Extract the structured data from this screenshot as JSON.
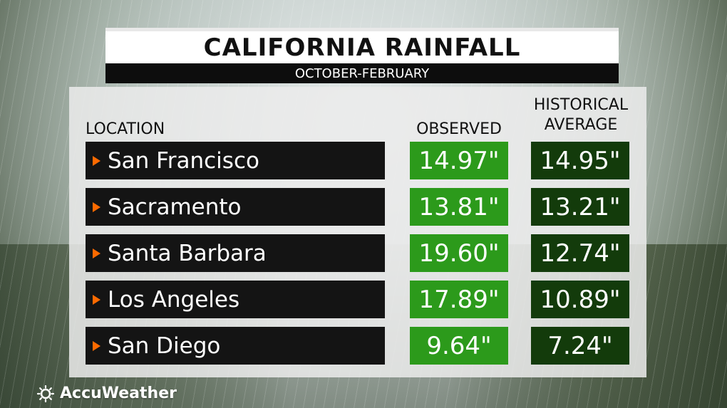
{
  "title": "CALIFORNIA RAINFALL",
  "subtitle": "OCTOBER-FEBRUARY",
  "brand": "AccuWeather",
  "columns": {
    "location": "LOCATION",
    "observed": "OBSERVED",
    "historical_line1": "HISTORICAL",
    "historical_line2": "AVERAGE"
  },
  "chart_data": {
    "type": "table",
    "title": "CALIFORNIA RAINFALL",
    "subtitle": "OCTOBER-FEBRUARY",
    "columns": [
      "LOCATION",
      "OBSERVED",
      "HISTORICAL AVERAGE"
    ],
    "rows": [
      {
        "location": "San Francisco",
        "observed": "14.97\"",
        "historical": "14.95\""
      },
      {
        "location": "Sacramento",
        "observed": "13.81\"",
        "historical": "13.21\""
      },
      {
        "location": "Santa Barbara",
        "observed": "19.60\"",
        "historical": "12.74\""
      },
      {
        "location": "Los Angeles",
        "observed": "17.89\"",
        "historical": "10.89\""
      },
      {
        "location": "San Diego",
        "observed": "9.64\"",
        "historical": "7.24\""
      }
    ]
  },
  "colors": {
    "observed_bg": "#2c9a1b",
    "historical_bg": "#133b0b",
    "location_bg": "#141414",
    "arrow": "#ff6a00"
  }
}
